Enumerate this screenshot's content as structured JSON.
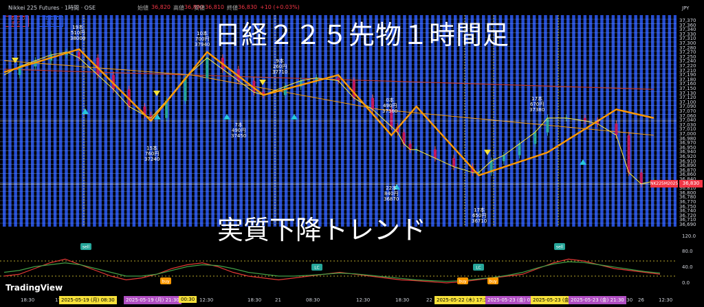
{
  "header": {
    "title": "Nikkei 225 Futures · 1時間 · OSE",
    "o_label": "始値",
    "o_val": "36,820",
    "h_label": "高値",
    "h_val": "36,890",
    "l_label": "安値",
    "l_val": "36,810",
    "c_label": "終値",
    "c_val": "36,830",
    "change": "+10 (+0.03%)",
    "sell_price": "36,820",
    "sell_label": "売り",
    "buy_price": "36,880",
    "buy_label": "買い",
    "currency": "JPY"
  },
  "headline_top": "日経２２５先物１時間足",
  "headline_bottom": "実質下降トレンド",
  "symbol_tag": "NK225M2025",
  "last_price": "36,830",
  "annotations": [
    {
      "text": "19本\n510円\n38000"
    },
    {
      "text": "10本\n700円\n37940"
    },
    {
      "text": "15本\n760円\n37240"
    },
    {
      "text": "7本\n490円\n37450"
    },
    {
      "text": "9本\n260円\n37710"
    },
    {
      "text": "0本\n490円\n37360"
    },
    {
      "text": "22本\n840円\n36870"
    },
    {
      "text": "17本\n650円\n36710"
    },
    {
      "text": "17本\n670円\n37380"
    }
  ],
  "markers": {
    "sell": "sell",
    "buy": "buy",
    "lc": "LC"
  },
  "x_axis": {
    "labels": [
      "18:30",
      "17",
      "19",
      "12:30",
      "18:30",
      "21",
      "08:30",
      "12:30",
      "18:30",
      "22",
      "08:30",
      "12:30",
      "18:30",
      "23",
      "08:30",
      "12:30",
      "21:30",
      "26",
      "12:30"
    ],
    "highlights": [
      {
        "text": "2025-05-19 (月)  08:30",
        "color": "#f7e13a",
        "fg": "#000"
      },
      {
        "text": "2025-05-19 (月)  21:30",
        "color": "#b04ec2",
        "fg": "#fff"
      },
      {
        "text": "00:30",
        "color": "#f7e13a",
        "fg": "#000"
      },
      {
        "text": "2025-05-22 (木)  17:30",
        "color": "#f7e13a",
        "fg": "#000"
      },
      {
        "text": "2025-05-23 (金)  07",
        "color": "#b04ec2",
        "fg": "#fff"
      },
      {
        "text": "2025-05-23 (金)",
        "color": "#f7e13a",
        "fg": "#000"
      },
      {
        "text": "2025-05-23 (金)  21:30",
        "color": "#b04ec2",
        "fg": "#fff"
      }
    ]
  },
  "osc_axis": [
    "120.0",
    "80.0",
    "40.0",
    "0.0"
  ],
  "logo": "TradingView",
  "chart_data": {
    "type": "line",
    "title": "日経２２５先物１時間足",
    "y_ticks": [
      "37,370",
      "37,360",
      "37,340",
      "37,330",
      "37,310",
      "37,300",
      "37,280",
      "37,270",
      "37,250",
      "37,240",
      "37,220",
      "37,210",
      "37,190",
      "37,180",
      "37,160",
      "37,150",
      "37,130",
      "37,120",
      "37,100",
      "37,090",
      "37,070",
      "37,060",
      "37,040",
      "37,030",
      "37,010",
      "37,000",
      "36,980",
      "36,970",
      "36,950",
      "36,940",
      "36,920",
      "36,910",
      "36,890",
      "36,870",
      "36,860",
      "36,840",
      "36,830",
      "36,810",
      "36,800",
      "36,780",
      "36,770",
      "36,750",
      "36,740",
      "36,720",
      "36,710",
      "36,690"
    ],
    "ylim": [
      36700,
      37380
    ],
    "zigzag": {
      "name": "zigzag",
      "x": [
        0,
        24,
        47,
        65,
        83,
        107,
        124,
        132,
        152,
        174,
        196,
        208
      ],
      "y": [
        37210,
        37290,
        37040,
        37280,
        37130,
        37200,
        36990,
        37090,
        36850,
        36930,
        37080,
        37050
      ]
    },
    "close": {
      "name": "price",
      "x": [
        0,
        5,
        10,
        15,
        20,
        24,
        30,
        35,
        40,
        45,
        47,
        52,
        58,
        65,
        70,
        75,
        80,
        83,
        90,
        95,
        100,
        107,
        112,
        118,
        124,
        126,
        128,
        130,
        132,
        138,
        144,
        150,
        152,
        156,
        160,
        165,
        170,
        174,
        180,
        186,
        190,
        196,
        200,
        204,
        208
      ],
      "y": [
        37200,
        37230,
        37250,
        37270,
        37280,
        37260,
        37200,
        37150,
        37090,
        37060,
        37050,
        37110,
        37190,
        37260,
        37220,
        37180,
        37140,
        37130,
        37160,
        37180,
        37190,
        37180,
        37120,
        37080,
        37020,
        37000,
        36960,
        36940,
        36940,
        36910,
        36880,
        36860,
        36860,
        36900,
        36920,
        36960,
        37000,
        37050,
        37050,
        37040,
        37030,
        36990,
        36860,
        36820,
        36830
      ]
    },
    "ma_long": {
      "name": "ma",
      "x": [
        0,
        208
      ],
      "y": [
        37220,
        37150
      ]
    },
    "ma_mid": {
      "name": "ma",
      "x": [
        0,
        60,
        120,
        208
      ],
      "y": [
        37250,
        37200,
        37080,
        36990
      ]
    },
    "oscillator": {
      "ylim": [
        0,
        120
      ],
      "red": [
        40,
        45,
        60,
        75,
        85,
        70,
        55,
        40,
        30,
        35,
        45,
        60,
        70,
        75,
        65,
        50,
        40,
        35,
        30,
        35,
        40,
        45,
        50,
        45,
        40,
        35,
        30,
        28,
        25,
        22,
        25,
        30,
        35,
        40,
        45,
        60,
        75,
        85,
        80,
        70,
        60,
        55,
        50,
        45
      ],
      "green": [
        50,
        55,
        65,
        70,
        75,
        70,
        60,
        50,
        40,
        40,
        45,
        55,
        65,
        70,
        68,
        60,
        50,
        45,
        40,
        40,
        42,
        45,
        48,
        46,
        42,
        38,
        34,
        30,
        28,
        26,
        28,
        32,
        36,
        42,
        50,
        62,
        72,
        78,
        76,
        70,
        64,
        58,
        52,
        48
      ]
    }
  }
}
